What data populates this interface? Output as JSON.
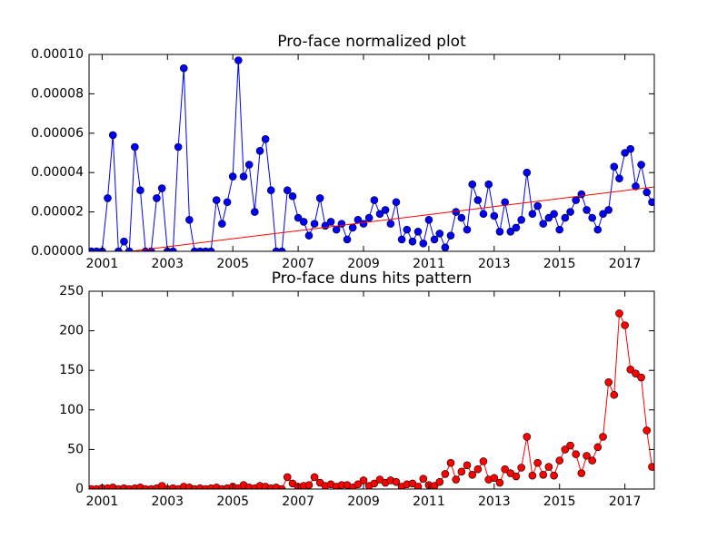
{
  "chart_data": [
    {
      "type": "line",
      "title": "Pro-face normalized plot",
      "x": [
        2000.67,
        2000.83,
        2001,
        2001.17,
        2001.33,
        2001.5,
        2001.67,
        2001.83,
        2002,
        2002.17,
        2002.33,
        2002.5,
        2002.67,
        2002.83,
        2003,
        2003.17,
        2003.33,
        2003.5,
        2003.67,
        2003.83,
        2004,
        2004.17,
        2004.33,
        2004.5,
        2004.67,
        2004.83,
        2005,
        2005.17,
        2005.33,
        2005.5,
        2005.67,
        2005.83,
        2006,
        2006.17,
        2006.33,
        2006.5,
        2006.67,
        2006.83,
        2007,
        2007.17,
        2007.33,
        2007.5,
        2007.67,
        2007.83,
        2008,
        2008.17,
        2008.33,
        2008.5,
        2008.67,
        2008.83,
        2009,
        2009.17,
        2009.33,
        2009.5,
        2009.67,
        2009.83,
        2010,
        2010.17,
        2010.33,
        2010.5,
        2010.67,
        2010.83,
        2011,
        2011.17,
        2011.33,
        2011.5,
        2011.67,
        2011.83,
        2012,
        2012.17,
        2012.33,
        2012.5,
        2012.67,
        2012.83,
        2013,
        2013.17,
        2013.33,
        2013.5,
        2013.67,
        2013.83,
        2014,
        2014.17,
        2014.33,
        2014.5,
        2014.67,
        2014.83,
        2015,
        2015.17,
        2015.33,
        2015.5,
        2015.67,
        2015.83,
        2016,
        2016.17,
        2016.33,
        2016.5,
        2016.67,
        2016.83,
        2017,
        2017.17,
        2017.33,
        2017.5,
        2017.67,
        2017.83
      ],
      "series": [
        {
          "color": "#0000ff",
          "values": [
            0,
            0,
            0,
            2.7e-05,
            5.9e-05,
            0,
            5e-06,
            0,
            5.3e-05,
            3.1e-05,
            0,
            0,
            2.7e-05,
            3.2e-05,
            0,
            0,
            5.3e-05,
            9.3e-05,
            1.6e-05,
            0,
            0,
            0,
            0,
            2.6e-05,
            1.4e-05,
            2.5e-05,
            3.8e-05,
            9.7e-05,
            3.8e-05,
            4.4e-05,
            2e-05,
            5.1e-05,
            5.7e-05,
            3.1e-05,
            0,
            0,
            3.1e-05,
            2.8e-05,
            1.7e-05,
            1.5e-05,
            8e-06,
            1.4e-05,
            2.7e-05,
            1.3e-05,
            1.5e-05,
            1.1e-05,
            1.4e-05,
            6e-06,
            1.2e-05,
            1.6e-05,
            1.4e-05,
            1.7e-05,
            2.6e-05,
            1.9e-05,
            2.1e-05,
            1.4e-05,
            2.5e-05,
            6e-06,
            1.1e-05,
            5e-06,
            1e-05,
            4e-06,
            1.6e-05,
            6e-06,
            9e-06,
            2e-06,
            8e-06,
            2e-05,
            1.7e-05,
            1.1e-05,
            3.4e-05,
            2.6e-05,
            1.9e-05,
            3.4e-05,
            1.8e-05,
            1e-05,
            2.5e-05,
            1e-05,
            1.2e-05,
            1.6e-05,
            4e-05,
            1.9e-05,
            2.3e-05,
            1.4e-05,
            1.7e-05,
            1.9e-05,
            1.1e-05,
            1.7e-05,
            2e-05,
            2.6e-05,
            2.9e-05,
            2.1e-05,
            1.7e-05,
            1.1e-05,
            1.9e-05,
            2.1e-05,
            4.3e-05,
            3.7e-05,
            5e-05,
            5.2e-05,
            3.3e-05,
            4.4e-05,
            3e-05,
            2.5e-05
          ]
        }
      ],
      "trend": {
        "color": "#ff0000",
        "x": [
          2000.6,
          2017.9
        ],
        "values": [
          -2.6e-06,
          3.27e-05
        ]
      },
      "xlim": [
        2000.6,
        2017.9
      ],
      "xticks": [
        2001,
        2003,
        2005,
        2007,
        2009,
        2011,
        2013,
        2015,
        2017
      ],
      "ylim": [
        0,
        0.0001
      ],
      "yticks": [
        {
          "value": 0,
          "label": "0.00000"
        },
        {
          "value": 2e-05,
          "label": "0.00002"
        },
        {
          "value": 4e-05,
          "label": "0.00004"
        },
        {
          "value": 6e-05,
          "label": "0.00006"
        },
        {
          "value": 8e-05,
          "label": "0.00008"
        },
        {
          "value": 0.0001,
          "label": "0.00010"
        }
      ]
    },
    {
      "type": "line",
      "title": "Pro-face duns hits pattern",
      "x": [
        2000.67,
        2000.83,
        2001,
        2001.17,
        2001.33,
        2001.5,
        2001.67,
        2001.83,
        2002,
        2002.17,
        2002.33,
        2002.5,
        2002.67,
        2002.83,
        2003,
        2003.17,
        2003.33,
        2003.5,
        2003.67,
        2003.83,
        2004,
        2004.17,
        2004.33,
        2004.5,
        2004.67,
        2004.83,
        2005,
        2005.17,
        2005.33,
        2005.5,
        2005.67,
        2005.83,
        2006,
        2006.17,
        2006.33,
        2006.5,
        2006.67,
        2006.83,
        2007,
        2007.17,
        2007.33,
        2007.5,
        2007.67,
        2007.83,
        2008,
        2008.17,
        2008.33,
        2008.5,
        2008.67,
        2008.83,
        2009,
        2009.17,
        2009.33,
        2009.5,
        2009.67,
        2009.83,
        2010,
        2010.17,
        2010.33,
        2010.5,
        2010.67,
        2010.83,
        2011,
        2011.17,
        2011.33,
        2011.5,
        2011.67,
        2011.83,
        2012,
        2012.17,
        2012.33,
        2012.5,
        2012.67,
        2012.83,
        2013,
        2013.17,
        2013.33,
        2013.5,
        2013.67,
        2013.83,
        2014,
        2014.17,
        2014.33,
        2014.5,
        2014.67,
        2014.83,
        2015,
        2015.17,
        2015.33,
        2015.5,
        2015.67,
        2015.83,
        2016,
        2016.17,
        2016.33,
        2016.5,
        2016.67,
        2016.83,
        2017,
        2017.17,
        2017.33,
        2017.5,
        2017.67,
        2017.83
      ],
      "series": [
        {
          "color": "#ff0000",
          "values": [
            0,
            0,
            1,
            1,
            2,
            0,
            1,
            0,
            1,
            2,
            0,
            0,
            1,
            4,
            0,
            1,
            0,
            3,
            2,
            0,
            1,
            0,
            1,
            2,
            0,
            1,
            3,
            1,
            5,
            2,
            1,
            4,
            3,
            1,
            2,
            0,
            15,
            7,
            3,
            4,
            5,
            15,
            8,
            4,
            6,
            3,
            5,
            5,
            2,
            6,
            11,
            4,
            7,
            12,
            8,
            11,
            9,
            3,
            6,
            7,
            3,
            13,
            5,
            4,
            9,
            19,
            33,
            12,
            22,
            30,
            18,
            25,
            35,
            12,
            14,
            8,
            25,
            20,
            16,
            27,
            66,
            17,
            33,
            18,
            28,
            17,
            36,
            50,
            55,
            44,
            20,
            42,
            36,
            53,
            66,
            135,
            119,
            222,
            207,
            151,
            146,
            141,
            74,
            28
          ]
        }
      ],
      "xlim": [
        2000.6,
        2017.9
      ],
      "xticks": [
        2001,
        2003,
        2005,
        2007,
        2009,
        2011,
        2013,
        2015,
        2017
      ],
      "ylim": [
        0,
        250
      ],
      "yticks": [
        0,
        50,
        100,
        150,
        200,
        250
      ]
    }
  ]
}
